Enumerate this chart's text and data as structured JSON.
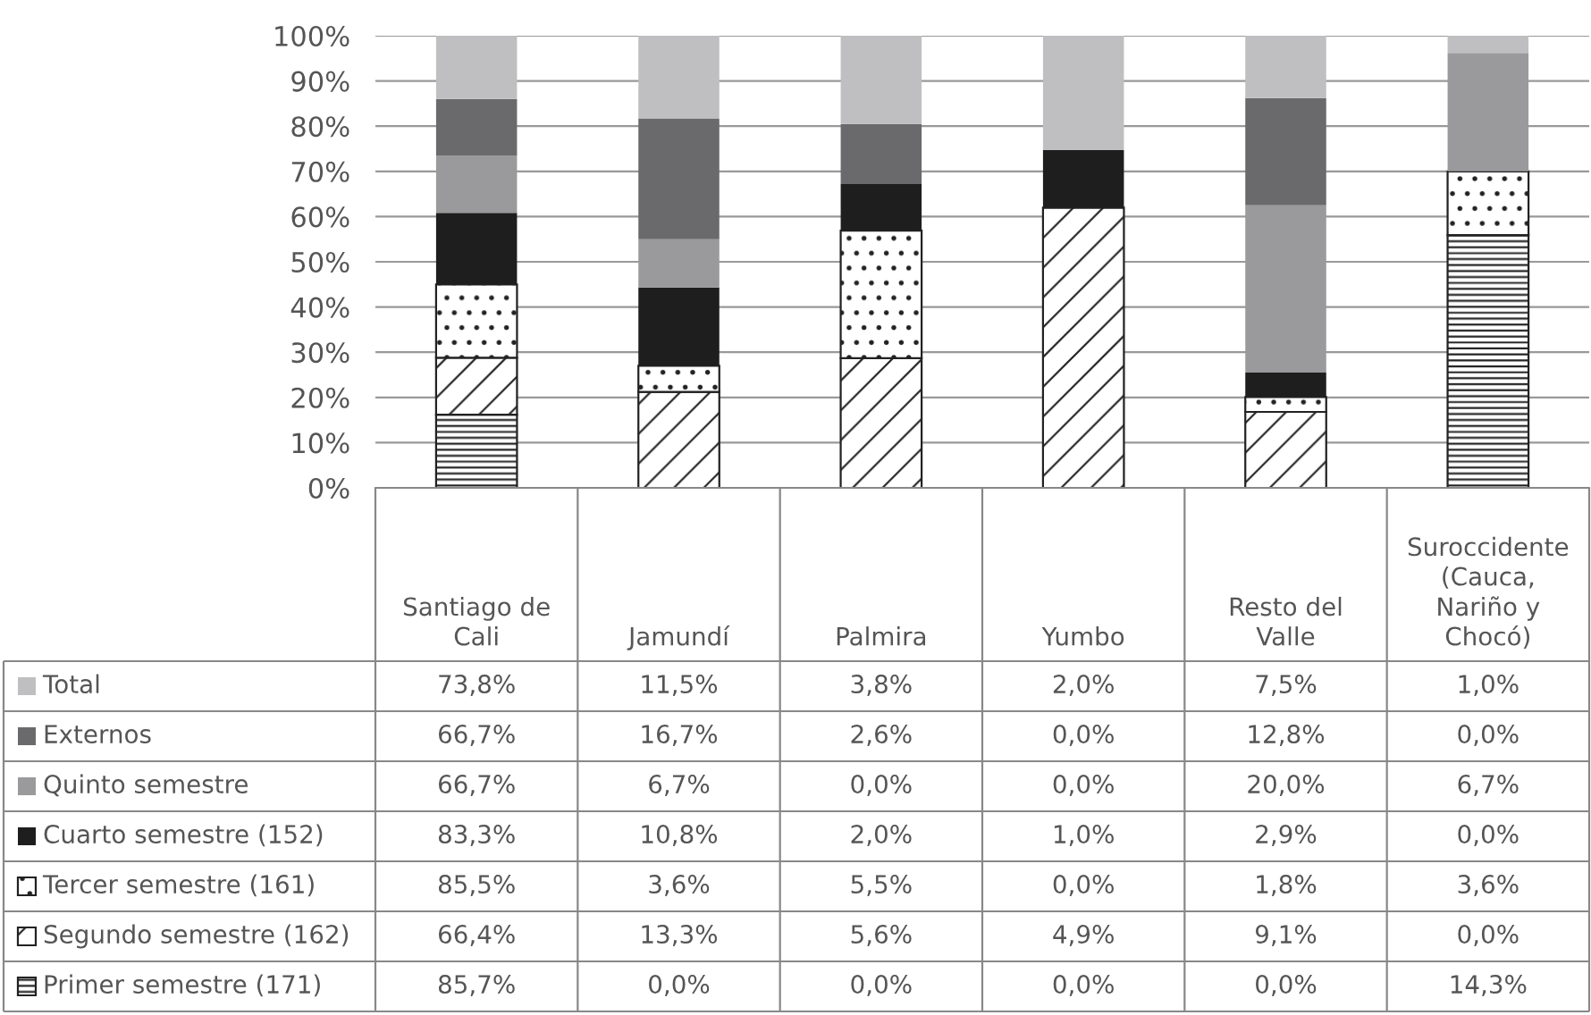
{
  "chart_data": {
    "type": "bar",
    "stacked": true,
    "categories": [
      "Santiago de\nCali",
      "Jamundí",
      "Palmira",
      "Yumbo",
      "Resto del\nValle",
      "Suroccidente\n(Cauca,\nNariño y\nChocó)"
    ],
    "ylim": [
      0,
      100
    ],
    "yticks": [
      {
        "value": 0,
        "label": "0%"
      },
      {
        "value": 10,
        "label": "10%"
      },
      {
        "value": 20,
        "label": "20%"
      },
      {
        "value": 30,
        "label": "30%"
      },
      {
        "value": 40,
        "label": "40%"
      },
      {
        "value": 50,
        "label": "50%"
      },
      {
        "value": 60,
        "label": "60%"
      },
      {
        "value": 70,
        "label": "70%"
      },
      {
        "value": 80,
        "label": "80%"
      },
      {
        "value": 90,
        "label": "90%"
      },
      {
        "value": 100,
        "label": "100%"
      }
    ],
    "grid": "y",
    "tick_labels": "y",
    "legend": "bottom left",
    "series": [
      {
        "name": "Primer semestre (171)",
        "color": "#222222",
        "values": [
          16.2,
          0,
          0,
          0,
          0,
          55.9
        ]
      },
      {
        "name": "Segundo semestre (162)",
        "color": "#222222",
        "values": [
          12.6,
          21.2,
          28.7,
          62.0,
          16.8,
          0
        ]
      },
      {
        "name": "Tercer semestre (161)",
        "color": "#222222",
        "values": [
          16.2,
          5.8,
          28.2,
          0,
          3.3,
          14.1
        ]
      },
      {
        "name": "Cuarto semestre (152)",
        "color": "#1e1e1e",
        "values": [
          15.8,
          17.3,
          10.3,
          12.7,
          5.4,
          0
        ]
      },
      {
        "name": "Quinto semestre",
        "color": "#9a9a9c",
        "values": [
          12.6,
          10.7,
          0,
          0,
          37.0,
          26.2
        ]
      },
      {
        "name": "Externos",
        "color": "#6a6a6c",
        "values": [
          12.6,
          26.7,
          13.3,
          0,
          23.7,
          0
        ]
      },
      {
        "name": "Total",
        "color": "#bfbfc1",
        "values": [
          14.0,
          18.3,
          19.5,
          25.3,
          13.8,
          3.9
        ]
      }
    ],
    "annotations": [
      "73,8%",
      "11,5%",
      "3,8%",
      "2,0%",
      "7,5%",
      "1,0%",
      "66,7%",
      "16,7%",
      "2,6%",
      "0,0%",
      "12,8%",
      "0,0%",
      "66,7%",
      "6,7%",
      "0,0%",
      "0,0%",
      "20,0%",
      "6,7%",
      "83,3%",
      "10,8%",
      "2,0%",
      "1,0%",
      "2,9%",
      "0,0%",
      "85,5%",
      "3,6%",
      "5,5%",
      "0,0%",
      "1,8%",
      "3,6%",
      "66,4%",
      "13,3%",
      "5,6%",
      "4,9%",
      "9,1%",
      "0,0%",
      "85,7%",
      "0,0%",
      "0,0%",
      "0,0%",
      "0,0%",
      "14,3%"
    ]
  }
}
